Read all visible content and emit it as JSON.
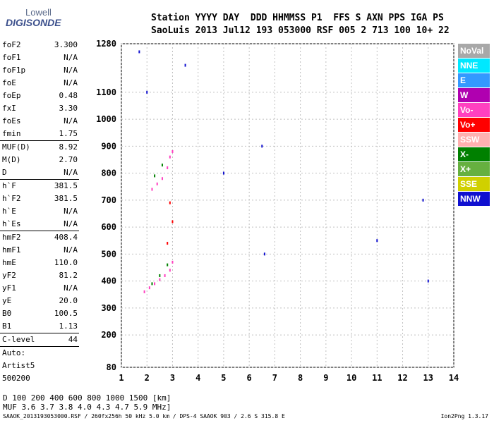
{
  "logo": {
    "line1": "Lowell",
    "line2": "DIGISONDE"
  },
  "header": {
    "line1": "Station YYYY DAY  DDD HHMMSS P1  FFS S AXN PPS IGA PS",
    "line2": "SaoLuis 2013 Jul12 193 053000 RSF 005 2 713 100 10+ 22"
  },
  "params": {
    "g1": [
      {
        "label": "foF2",
        "value": "3.300"
      },
      {
        "label": "foF1",
        "value": "N/A"
      },
      {
        "label": "foF1p",
        "value": "N/A"
      },
      {
        "label": "foE",
        "value": "N/A"
      },
      {
        "label": "foEp",
        "value": "0.48"
      },
      {
        "label": "fxI",
        "value": "3.30"
      },
      {
        "label": "foEs",
        "value": "N/A"
      },
      {
        "label": "fmin",
        "value": "1.75"
      }
    ],
    "g2": [
      {
        "label": "MUF(D)",
        "value": "8.92"
      },
      {
        "label": "M(D)",
        "value": "2.70"
      },
      {
        "label": "D",
        "value": "N/A"
      }
    ],
    "g3": [
      {
        "label": "h`F",
        "value": "381.5"
      },
      {
        "label": "h`F2",
        "value": "381.5"
      },
      {
        "label": "h`E",
        "value": "N/A"
      },
      {
        "label": "h`Es",
        "value": "N/A"
      }
    ],
    "g4": [
      {
        "label": "hmF2",
        "value": "408.4"
      },
      {
        "label": "hmF1",
        "value": "N/A"
      },
      {
        "label": "hmE",
        "value": "110.0"
      },
      {
        "label": "yF2",
        "value": "81.2"
      },
      {
        "label": "yF1",
        "value": "N/A"
      },
      {
        "label": "yE",
        "value": "20.0"
      },
      {
        "label": "B0",
        "value": "100.5"
      },
      {
        "label": "B1",
        "value": "1.13"
      }
    ],
    "clevel": {
      "label": "C-level",
      "value": "44"
    },
    "auto": [
      "Auto:",
      "Artist5",
      "500200"
    ]
  },
  "legend": [
    {
      "label": "NoVal",
      "color": "#a8a8a8"
    },
    {
      "label": "NNE",
      "color": "#00e8ff"
    },
    {
      "label": "E",
      "color": "#3399ff"
    },
    {
      "label": "W",
      "color": "#b000b0"
    },
    {
      "label": "Vo-",
      "color": "#ff40c0"
    },
    {
      "label": "Vo+",
      "color": "#ff0000"
    },
    {
      "label": "SSW",
      "color": "#ffb0b0"
    },
    {
      "label": "X-",
      "color": "#008000"
    },
    {
      "label": "X+",
      "color": "#66b040"
    },
    {
      "label": "SSE",
      "color": "#d0d000"
    },
    {
      "label": "NNW",
      "color": "#1010d0"
    }
  ],
  "chart_data": {
    "type": "scatter",
    "title": "",
    "xlabel": "",
    "ylabel": "",
    "xlim": [
      1,
      14
    ],
    "ylim": [
      80,
      1280
    ],
    "xticks": [
      "1",
      "2",
      "3",
      "4",
      "5",
      "6",
      "7",
      "8",
      "9",
      "10",
      "11",
      "12",
      "13",
      "14"
    ],
    "yticks": [
      "80",
      "200",
      "300",
      "400",
      "500",
      "600",
      "700",
      "800",
      "900",
      "1000",
      "1100",
      "1280"
    ],
    "grid": true,
    "series": [
      {
        "color": "#ff40c0",
        "points": [
          [
            1.9,
            360
          ],
          [
            2.1,
            375
          ],
          [
            2.3,
            390
          ],
          [
            2.5,
            405
          ],
          [
            2.7,
            420
          ],
          [
            2.9,
            440
          ],
          [
            3.0,
            470
          ],
          [
            2.6,
            780
          ],
          [
            2.8,
            820
          ],
          [
            2.9,
            860
          ],
          [
            3.0,
            880
          ],
          [
            2.4,
            760
          ],
          [
            2.2,
            740
          ]
        ]
      },
      {
        "color": "#008000",
        "points": [
          [
            2.2,
            390
          ],
          [
            2.5,
            420
          ],
          [
            2.8,
            460
          ],
          [
            2.6,
            830
          ],
          [
            2.3,
            790
          ]
        ]
      },
      {
        "color": "#1010d0",
        "points": [
          [
            1.7,
            1250
          ],
          [
            2.0,
            1100
          ],
          [
            3.5,
            1200
          ],
          [
            5.0,
            800
          ],
          [
            6.5,
            900
          ],
          [
            6.6,
            500
          ],
          [
            11.0,
            550
          ],
          [
            12.8,
            700
          ],
          [
            13.0,
            400
          ]
        ]
      },
      {
        "color": "#ff0000",
        "points": [
          [
            2.8,
            540
          ],
          [
            3.0,
            620
          ],
          [
            2.9,
            690
          ]
        ]
      }
    ],
    "d_table": {
      "d_label": "D",
      "muf_label": "MUF",
      "d": [
        "100",
        "200",
        "400",
        "600",
        "800",
        "1000",
        "1500",
        "3000 [km]"
      ],
      "muf": [
        "3.6",
        "3.7",
        "3.8",
        "4.0",
        "4.3",
        "4.7",
        "5.9",
        "8.9 [MHz]"
      ]
    }
  },
  "footer": {
    "left": "SAAOK_2013193053000.RSF / 260fx256h 50 kHz 5.0 km / DPS-4 SAAOK 903 / 2.6 S 315.8 E",
    "right": "Ion2Png 1.3.17"
  }
}
